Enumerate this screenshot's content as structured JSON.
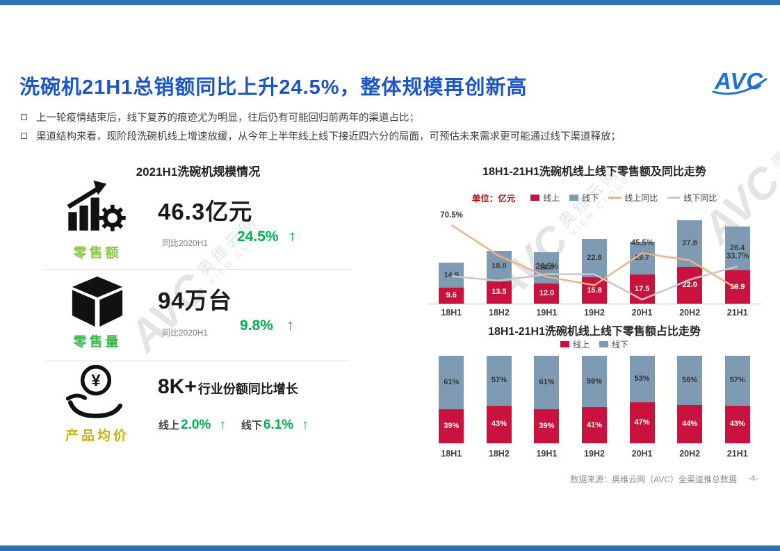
{
  "page": {
    "title": "洗碗机21H1总销额同比上升24.5%，整体规模再创新高",
    "logo_text": "AVC",
    "bullets": [
      "上一轮疫情结束后，线下复苏的痕迹尤为明显，往后仍有可能回归前两年的渠道占比；",
      "渠道结构来看，现阶段洗碗机线上增速放缓，从今年上半年线上线下接近四六分的局面，可预估未来需求更可能通过线下渠道释放；"
    ],
    "footer_source": "数据来源：奥维云网（AVC）全渠道推总数据",
    "page_number": "-4-",
    "watermark": {
      "brand": "AVC",
      "cn": "奥维云网",
      "en": "VIEW CLOUD"
    }
  },
  "colors": {
    "title_blue": "#1B55C9",
    "band_blue": "#2E74B5",
    "accent_green": "#00B050",
    "online_red": "#C9133E",
    "offline_blue": "#7E9BB3",
    "online_yoy_orange": "#F2B183",
    "offline_yoy_gray": "#C8C8C8",
    "unit_red": "#C00000",
    "label_sales_green": "#8CC63F",
    "label_volume_green": "#39B54A",
    "label_price_gold": "#C9B500"
  },
  "left_panel": {
    "title": "2021H1洗碗机规模情况",
    "metrics": [
      {
        "label": "零售额",
        "value": "46.3亿元",
        "compare_label": "同比2020H1",
        "change": "24.5%",
        "arrow": "↑"
      },
      {
        "label": "零售量",
        "value": "94万台",
        "compare_label": "同比2020H1",
        "change": "9.8%",
        "arrow": "↑"
      },
      {
        "label": "产品均价",
        "value": "8K+",
        "value_desc": "行业份额同比增长",
        "icon_symbol": "¥",
        "online_label": "线上",
        "online_change": "2.0%",
        "online_arrow": "↑",
        "offline_label": "线下",
        "offline_change": "6.1%",
        "offline_arrow": "↑"
      }
    ]
  },
  "chart_data": [
    {
      "id": "value_trend",
      "type": "bar",
      "subtype": "stacked-bar-with-lines",
      "title": "18H1-21H1洗碗机线上线下零售额及同比走势",
      "unit_label": "单位：亿元",
      "categories": [
        "18H1",
        "18H2",
        "19H1",
        "19H2",
        "20H1",
        "20H2",
        "21H1"
      ],
      "bar_series": [
        {
          "name": "线上",
          "color": "#C9133E",
          "label_color": "#FFFFFF",
          "values": [
            9.6,
            13.5,
            12.0,
            15.8,
            17.5,
            22.0,
            19.9
          ]
        },
        {
          "name": "线下",
          "color": "#7E9BB3",
          "label_color": "#3b3b3b",
          "values": [
            14.9,
            18.0,
            18.9,
            22.8,
            19.7,
            27.8,
            26.4
          ]
        }
      ],
      "line_series": [
        {
          "name": "线上同比",
          "color": "#F2B183",
          "values_pct": [
            70.5,
            43.0,
            24.5,
            17.0,
            45.5,
            39.2,
            13.7
          ],
          "labels": {
            "0": "70.5%",
            "2": "24.5%",
            "4": "45.5%"
          }
        },
        {
          "name": "线下同比",
          "color": "#C8C8C8",
          "values_pct": [
            25.0,
            21.0,
            26.8,
            26.7,
            4.2,
            21.9,
            33.7
          ],
          "labels": {
            "6": "33.7%"
          }
        }
      ],
      "ylim": [
        0,
        55
      ],
      "legend_position": "top",
      "grid": false
    },
    {
      "id": "share_trend",
      "type": "bar",
      "subtype": "stacked-bar-100",
      "title": "18H1-21H1洗碗机线上线下零售额占比走势",
      "categories": [
        "18H1",
        "18H2",
        "19H1",
        "19H2",
        "20H1",
        "20H2",
        "21H1"
      ],
      "series": [
        {
          "name": "线上",
          "color": "#C9133E",
          "label_color": "#FFFFFF",
          "values_pct": [
            39,
            43,
            39,
            41,
            47,
            44,
            43
          ]
        },
        {
          "name": "线下",
          "color": "#7E9BB3",
          "label_color": "#333333",
          "values_pct": [
            61,
            57,
            61,
            59,
            53,
            56,
            57
          ]
        }
      ],
      "ylim": [
        0,
        100
      ],
      "legend_position": "top",
      "grid": false
    }
  ]
}
